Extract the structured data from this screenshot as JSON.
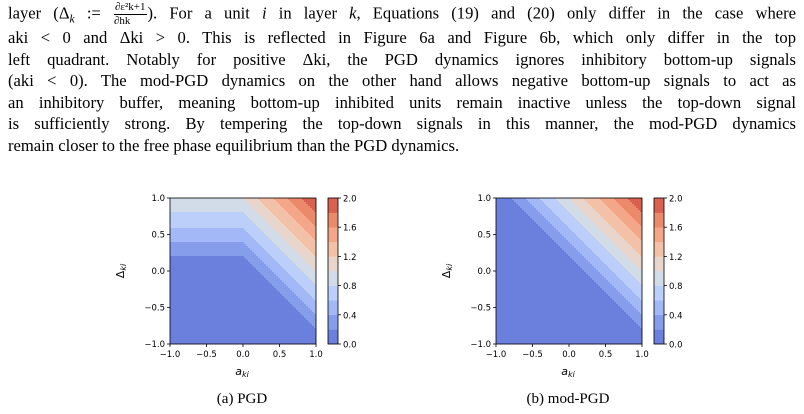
{
  "paragraph": {
    "l1_a": "layer (Δ",
    "l1_b": "k",
    "l1_c": " := ",
    "l1_num": "∂ε²k+1",
    "l1_den": "∂hk",
    "l1_d": "). For a unit ",
    "l1_e": "i",
    "l1_f": " in layer ",
    "l1_g": "k",
    "l1_h": ", Equations (19) and  (20) only differ in the case where",
    "l2": "aki < 0 and Δki > 0. This is reflected in Figure 6a and Figure 6b, which only differ in the top",
    "l3": "left quadrant. Notably for positive Δki, the PGD dynamics ignores inhibitory bottom-up signals",
    "l4": "(aki < 0). The mod-PGD dynamics on the other hand allows negative bottom-up signals to act as",
    "l5": "an inhibitory buffer, meaning bottom-up inhibited units remain inactive unless the top-down signal",
    "l6": "is sufficiently strong. By tempering the top-down signals in this manner, the mod-PGD dynamics",
    "l7": "remain closer to the free phase equilibrium than the PGD dynamics."
  },
  "figures": [
    {
      "caption": "(a) PGD",
      "xlabel": "aki",
      "ylabel": "Δki",
      "xticks": [
        "−1.0",
        "−0.5",
        "0.0",
        "0.5",
        "1.0"
      ],
      "yticks": [
        "1.0",
        "0.5",
        "0.0",
        "−0.5",
        "−1.0"
      ],
      "cbar_ticks": [
        "2.0",
        "1.6",
        "1.2",
        "0.8",
        "0.4",
        "0.0"
      ]
    },
    {
      "caption": "(b) mod-PGD",
      "xlabel": "aki",
      "ylabel": "Δki",
      "xticks": [
        "−1.0",
        "−0.5",
        "0.0",
        "0.5",
        "1.0"
      ],
      "yticks": [
        "1.0",
        "0.5",
        "0.0",
        "−0.5",
        "−1.0"
      ],
      "cbar_ticks": [
        "2.0",
        "1.6",
        "1.2",
        "0.8",
        "0.4",
        "0.0"
      ]
    }
  ],
  "chart_data": [
    {
      "type": "heatmap",
      "title": "(a) PGD",
      "xlabel": "a_ki",
      "ylabel": "Δ_ki",
      "xlim": [
        -1.0,
        1.0
      ],
      "ylim": [
        -1.0,
        1.0
      ],
      "levels": [
        0.0,
        0.2,
        0.4,
        0.6,
        0.8,
        1.0,
        1.2,
        1.4,
        1.6,
        1.8,
        2.0
      ],
      "function": "relu(a_ki + Δ_ki) for a_ki>=0; relu(Δ_ki) for a_ki<0",
      "colormap": "coolwarm",
      "colorbar_ticks": [
        0.0,
        0.4,
        0.8,
        1.2,
        1.6,
        2.0
      ]
    },
    {
      "type": "heatmap",
      "title": "(b) mod-PGD",
      "xlabel": "a_ki",
      "ylabel": "Δ_ki",
      "xlim": [
        -1.0,
        1.0
      ],
      "ylim": [
        -1.0,
        1.0
      ],
      "levels": [
        0.0,
        0.2,
        0.4,
        0.6,
        0.8,
        1.0,
        1.2,
        1.4,
        1.6,
        1.8,
        2.0
      ],
      "function": "relu(a_ki + Δ_ki)",
      "colormap": "coolwarm",
      "colorbar_ticks": [
        0.0,
        0.4,
        0.8,
        1.2,
        1.6,
        2.0
      ]
    }
  ],
  "colors": {
    "bands": [
      "#6b80dc",
      "#869dec",
      "#a3b8f6",
      "#bccffb",
      "#d2dbe8",
      "#e8d6cc",
      "#f3c0a8",
      "#f3a688",
      "#ea8a6b",
      "#d9614f"
    ]
  }
}
